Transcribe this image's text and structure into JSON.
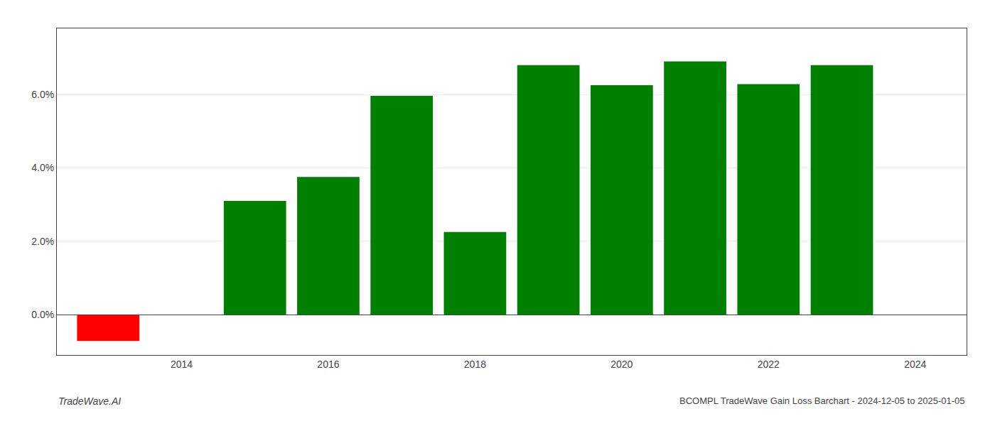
{
  "chart_data": {
    "type": "bar",
    "title": "BCOMPL TradeWave Gain Loss Barchart - 2024-12-05 to 2025-01-05",
    "annotations": [
      "TradeWave.AI"
    ],
    "x": [
      2013,
      2015,
      2016,
      2017,
      2018,
      2019,
      2020,
      2021,
      2022,
      2023
    ],
    "values": [
      -0.72,
      3.1,
      3.75,
      5.96,
      2.25,
      6.8,
      6.25,
      6.9,
      6.28,
      6.8
    ],
    "colors": [
      "#ff0000",
      "#008000",
      "#008000",
      "#008000",
      "#008000",
      "#008000",
      "#008000",
      "#008000",
      "#008000",
      "#008000"
    ],
    "xlim": [
      2012.3,
      2024.7
    ],
    "xticks": [
      2014,
      2016,
      2018,
      2020,
      2022,
      2024
    ],
    "ylim": [
      -1.1,
      7.8
    ],
    "yticks": [
      {
        "value": 0.0,
        "label": "0.0%"
      },
      {
        "value": 2.0,
        "label": "2.0%"
      },
      {
        "value": 4.0,
        "label": "4.0%"
      },
      {
        "value": 6.0,
        "label": "6.0%"
      }
    ],
    "grid": true
  }
}
